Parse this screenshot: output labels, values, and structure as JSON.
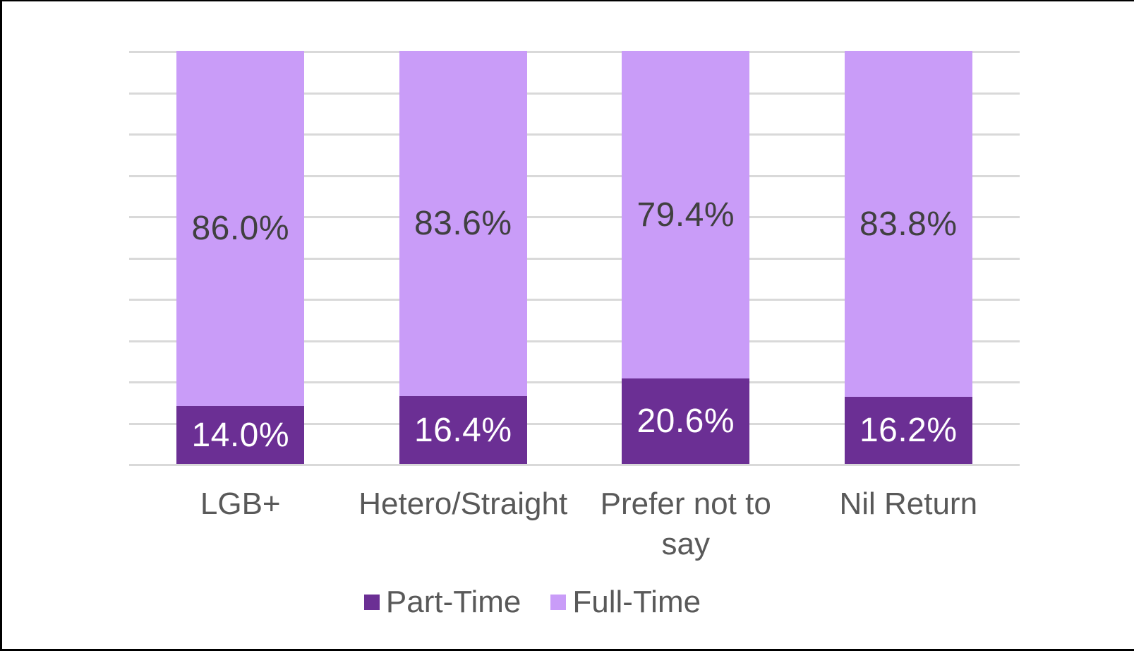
{
  "chart_data": {
    "type": "bar",
    "subtype": "stacked-percentage-column",
    "title": "",
    "xlabel": "",
    "ylabel": "",
    "ylim": [
      0,
      100
    ],
    "categories": [
      "LGB+",
      "Hetero/Straight",
      "Prefer not to say",
      "Nil Return"
    ],
    "series": [
      {
        "name": "Part-Time",
        "color": "#6B2F94",
        "values": [
          14.0,
          16.4,
          20.6,
          16.2
        ],
        "labels": [
          "14.0%",
          "16.4%",
          "20.6%",
          "16.2%"
        ],
        "label_color": "#FFFFFF"
      },
      {
        "name": "Full-Time",
        "color": "#C99CF8",
        "values": [
          86.0,
          83.6,
          79.4,
          83.8
        ],
        "labels": [
          "86.0%",
          "83.6%",
          "79.4%",
          "83.8%"
        ],
        "label_color": "#404040"
      }
    ],
    "gridlines": {
      "visible": true,
      "interval": 10,
      "color": "#D9D9D9"
    },
    "legend": {
      "position": "bottom",
      "text_color": "#595959"
    },
    "category_label_color": "#595959"
  }
}
